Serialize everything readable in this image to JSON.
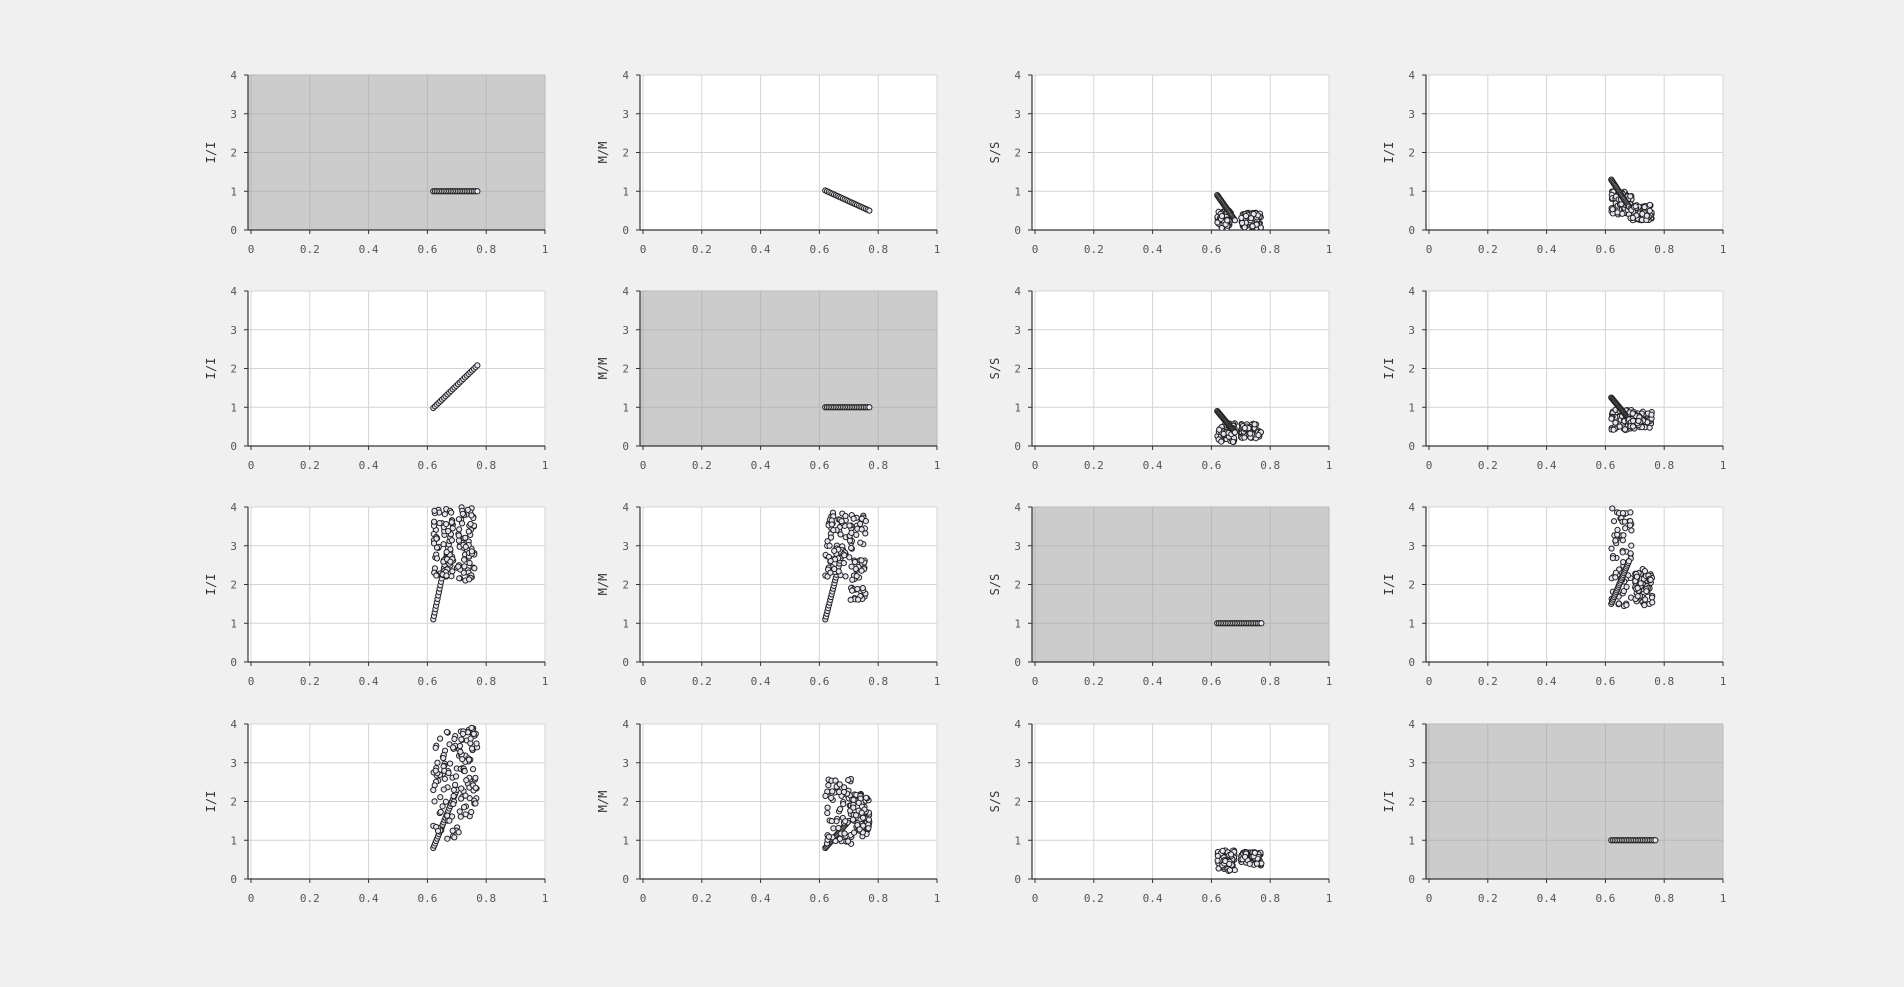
{
  "figure": {
    "background": "#f0f0f0",
    "plot_background": "#ffffff",
    "highlight_background": "#cccccc",
    "grid_color": "#d4d4d4",
    "axis_color": "#333333",
    "marker_fill": "#e6e6f0",
    "marker_edge": "#222222"
  },
  "chart_data": [
    {
      "type": "scatter",
      "row": 0,
      "col": 0,
      "ylabel": "I/I",
      "highlight": true,
      "xlim": [
        0,
        1
      ],
      "ylim": [
        0,
        4
      ],
      "xticks": [
        "0",
        "0.2",
        "0.4",
        "0.6",
        "0.8",
        "1"
      ],
      "yticks": [
        "0",
        "1",
        "2",
        "3",
        "4"
      ],
      "series": [
        {
          "kind": "line",
          "x": [
            0.62,
            0.77
          ],
          "y": [
            1.0,
            1.0
          ]
        }
      ]
    },
    {
      "type": "scatter",
      "row": 0,
      "col": 1,
      "ylabel": "M/M",
      "highlight": false,
      "xlim": [
        0,
        1
      ],
      "ylim": [
        0,
        4
      ],
      "xticks": [
        "0",
        "0.2",
        "0.4",
        "0.6",
        "0.8",
        "1"
      ],
      "yticks": [
        "0",
        "1",
        "2",
        "3",
        "4"
      ],
      "series": [
        {
          "kind": "line",
          "x": [
            0.62,
            0.77
          ],
          "y": [
            1.02,
            0.5
          ]
        }
      ]
    },
    {
      "type": "scatter",
      "row": 0,
      "col": 2,
      "ylabel": "S/S",
      "highlight": false,
      "xlim": [
        0,
        1
      ],
      "ylim": [
        0,
        4
      ],
      "xticks": [
        "0",
        "0.2",
        "0.4",
        "0.6",
        "0.8",
        "1"
      ],
      "yticks": [
        "0",
        "1",
        "2",
        "3",
        "4"
      ],
      "series": [
        {
          "kind": "cluster",
          "x": [
            0.62,
            0.67
          ],
          "y": [
            0.05,
            0.5
          ]
        },
        {
          "kind": "line",
          "x": [
            0.62,
            0.68
          ],
          "y": [
            0.9,
            0.25
          ]
        },
        {
          "kind": "cluster",
          "x": [
            0.7,
            0.77
          ],
          "y": [
            0.05,
            0.45
          ]
        }
      ]
    },
    {
      "type": "scatter",
      "row": 0,
      "col": 3,
      "ylabel": "I/I",
      "highlight": false,
      "xlim": [
        0,
        1
      ],
      "ylim": [
        0,
        4
      ],
      "xticks": [
        "0",
        "0.2",
        "0.4",
        "0.6",
        "0.8",
        "1"
      ],
      "yticks": [
        "0",
        "1",
        "2",
        "3",
        "4"
      ],
      "series": [
        {
          "kind": "cluster",
          "x": [
            0.62,
            0.69
          ],
          "y": [
            0.4,
            1.0
          ]
        },
        {
          "kind": "line",
          "x": [
            0.62,
            0.68
          ],
          "y": [
            1.3,
            0.6
          ]
        },
        {
          "kind": "cluster",
          "x": [
            0.68,
            0.76
          ],
          "y": [
            0.25,
            0.65
          ]
        }
      ]
    },
    {
      "type": "scatter",
      "row": 1,
      "col": 0,
      "ylabel": "I/I",
      "highlight": false,
      "xlim": [
        0,
        1
      ],
      "ylim": [
        0,
        4
      ],
      "xticks": [
        "0",
        "0.2",
        "0.4",
        "0.6",
        "0.8",
        "1"
      ],
      "yticks": [
        "0",
        "1",
        "2",
        "3",
        "4"
      ],
      "series": [
        {
          "kind": "line",
          "x": [
            0.62,
            0.77
          ],
          "y": [
            0.98,
            2.08
          ]
        }
      ]
    },
    {
      "type": "scatter",
      "row": 1,
      "col": 1,
      "ylabel": "M/M",
      "highlight": true,
      "xlim": [
        0,
        1
      ],
      "ylim": [
        0,
        4
      ],
      "xticks": [
        "0",
        "0.2",
        "0.4",
        "0.6",
        "0.8",
        "1"
      ],
      "yticks": [
        "0",
        "1",
        "2",
        "3",
        "4"
      ],
      "series": [
        {
          "kind": "line",
          "x": [
            0.62,
            0.77
          ],
          "y": [
            1.0,
            1.0
          ]
        }
      ]
    },
    {
      "type": "scatter",
      "row": 1,
      "col": 2,
      "ylabel": "S/S",
      "highlight": false,
      "xlim": [
        0,
        1
      ],
      "ylim": [
        0,
        4
      ],
      "xticks": [
        "0",
        "0.2",
        "0.4",
        "0.6",
        "0.8",
        "1"
      ],
      "yticks": [
        "0",
        "1",
        "2",
        "3",
        "4"
      ],
      "series": [
        {
          "kind": "cluster",
          "x": [
            0.62,
            0.68
          ],
          "y": [
            0.1,
            0.6
          ]
        },
        {
          "kind": "line",
          "x": [
            0.62,
            0.68
          ],
          "y": [
            0.9,
            0.35
          ]
        },
        {
          "kind": "cluster",
          "x": [
            0.7,
            0.77
          ],
          "y": [
            0.2,
            0.6
          ]
        }
      ]
    },
    {
      "type": "scatter",
      "row": 1,
      "col": 3,
      "ylabel": "I/I",
      "highlight": false,
      "xlim": [
        0,
        1
      ],
      "ylim": [
        0,
        4
      ],
      "xticks": [
        "0",
        "0.2",
        "0.4",
        "0.6",
        "0.8",
        "1"
      ],
      "yticks": [
        "0",
        "1",
        "2",
        "3",
        "4"
      ],
      "series": [
        {
          "kind": "cluster",
          "x": [
            0.62,
            0.69
          ],
          "y": [
            0.4,
            0.95
          ]
        },
        {
          "kind": "line",
          "x": [
            0.62,
            0.68
          ],
          "y": [
            1.25,
            0.7
          ]
        },
        {
          "kind": "cluster",
          "x": [
            0.68,
            0.76
          ],
          "y": [
            0.45,
            0.9
          ]
        }
      ]
    },
    {
      "type": "scatter",
      "row": 2,
      "col": 0,
      "ylabel": "I/I",
      "highlight": false,
      "xlim": [
        0,
        1
      ],
      "ylim": [
        0,
        4
      ],
      "xticks": [
        "0",
        "0.2",
        "0.4",
        "0.6",
        "0.8",
        "1"
      ],
      "yticks": [
        "0",
        "1",
        "2",
        "3",
        "4"
      ],
      "series": [
        {
          "kind": "line",
          "x": [
            0.62,
            0.68
          ],
          "y": [
            1.1,
            3.3
          ]
        },
        {
          "kind": "cluster",
          "x": [
            0.62,
            0.69
          ],
          "y": [
            2.2,
            4.0
          ]
        },
        {
          "kind": "cluster",
          "x": [
            0.7,
            0.76
          ],
          "y": [
            2.1,
            4.0
          ]
        }
      ]
    },
    {
      "type": "scatter",
      "row": 2,
      "col": 1,
      "ylabel": "M/M",
      "highlight": false,
      "xlim": [
        0,
        1
      ],
      "ylim": [
        0,
        4
      ],
      "xticks": [
        "0",
        "0.2",
        "0.4",
        "0.6",
        "0.8",
        "1"
      ],
      "yticks": [
        "0",
        "1",
        "2",
        "3",
        "4"
      ],
      "series": [
        {
          "kind": "line",
          "x": [
            0.62,
            0.68
          ],
          "y": [
            1.1,
            2.9
          ]
        },
        {
          "kind": "cluster",
          "x": [
            0.62,
            0.69
          ],
          "y": [
            2.2,
            4.0
          ]
        },
        {
          "kind": "cluster",
          "x": [
            0.7,
            0.76
          ],
          "y": [
            1.6,
            3.8
          ]
        }
      ]
    },
    {
      "type": "scatter",
      "row": 2,
      "col": 2,
      "ylabel": "S/S",
      "highlight": true,
      "xlim": [
        0,
        1
      ],
      "ylim": [
        0,
        4
      ],
      "xticks": [
        "0",
        "0.2",
        "0.4",
        "0.6",
        "0.8",
        "1"
      ],
      "yticks": [
        "0",
        "1",
        "2",
        "3",
        "4"
      ],
      "series": [
        {
          "kind": "line",
          "x": [
            0.62,
            0.77
          ],
          "y": [
            1.0,
            1.0
          ]
        }
      ]
    },
    {
      "type": "scatter",
      "row": 2,
      "col": 3,
      "ylabel": "I/I",
      "highlight": false,
      "xlim": [
        0,
        1
      ],
      "ylim": [
        0,
        4
      ],
      "xticks": [
        "0",
        "0.2",
        "0.4",
        "0.6",
        "0.8",
        "1"
      ],
      "yticks": [
        "0",
        "1",
        "2",
        "3",
        "4"
      ],
      "series": [
        {
          "kind": "cluster",
          "x": [
            0.62,
            0.69
          ],
          "y": [
            1.4,
            4.0
          ]
        },
        {
          "kind": "line",
          "x": [
            0.62,
            0.68
          ],
          "y": [
            1.5,
            2.6
          ]
        },
        {
          "kind": "cluster",
          "x": [
            0.7,
            0.76
          ],
          "y": [
            1.45,
            2.4
          ]
        }
      ]
    },
    {
      "type": "scatter",
      "row": 3,
      "col": 0,
      "ylabel": "I/I",
      "highlight": false,
      "xlim": [
        0,
        1
      ],
      "ylim": [
        0,
        4
      ],
      "xticks": [
        "0",
        "0.2",
        "0.4",
        "0.6",
        "0.8",
        "1"
      ],
      "yticks": [
        "0",
        "1",
        "2",
        "3",
        "4"
      ],
      "series": [
        {
          "kind": "line",
          "x": [
            0.62,
            0.7
          ],
          "y": [
            0.8,
            2.3
          ]
        },
        {
          "kind": "cluster",
          "x": [
            0.62,
            0.71
          ],
          "y": [
            1.0,
            3.8
          ]
        },
        {
          "kind": "cluster",
          "x": [
            0.71,
            0.77
          ],
          "y": [
            1.6,
            3.9
          ]
        }
      ]
    },
    {
      "type": "scatter",
      "row": 3,
      "col": 1,
      "ylabel": "M/M",
      "highlight": false,
      "xlim": [
        0,
        1
      ],
      "ylim": [
        0,
        4
      ],
      "xticks": [
        "0",
        "0.2",
        "0.4",
        "0.6",
        "0.8",
        "1"
      ],
      "yticks": [
        "0",
        "1",
        "2",
        "3",
        "4"
      ],
      "series": [
        {
          "kind": "line",
          "x": [
            0.62,
            0.7
          ],
          "y": [
            0.8,
            1.5
          ]
        },
        {
          "kind": "cluster",
          "x": [
            0.62,
            0.71
          ],
          "y": [
            0.9,
            2.6
          ]
        },
        {
          "kind": "cluster",
          "x": [
            0.71,
            0.77
          ],
          "y": [
            1.1,
            2.2
          ]
        }
      ]
    },
    {
      "type": "scatter",
      "row": 3,
      "col": 2,
      "ylabel": "S/S",
      "highlight": false,
      "xlim": [
        0,
        1
      ],
      "ylim": [
        0,
        4
      ],
      "xticks": [
        "0",
        "0.2",
        "0.4",
        "0.6",
        "0.8",
        "1"
      ],
      "yticks": [
        "0",
        "1",
        "2",
        "3",
        "4"
      ],
      "series": [
        {
          "kind": "cluster",
          "x": [
            0.62,
            0.68
          ],
          "y": [
            0.2,
            0.75
          ]
        },
        {
          "kind": "cluster",
          "x": [
            0.7,
            0.77
          ],
          "y": [
            0.35,
            0.7
          ]
        }
      ]
    },
    {
      "type": "scatter",
      "row": 3,
      "col": 3,
      "ylabel": "I/I",
      "highlight": true,
      "xlim": [
        0,
        1
      ],
      "ylim": [
        0,
        4
      ],
      "xticks": [
        "0",
        "0.2",
        "0.4",
        "0.6",
        "0.8",
        "1"
      ],
      "yticks": [
        "0",
        "1",
        "2",
        "3",
        "4"
      ],
      "series": [
        {
          "kind": "line",
          "x": [
            0.62,
            0.77
          ],
          "y": [
            1.0,
            1.0
          ]
        }
      ]
    }
  ]
}
